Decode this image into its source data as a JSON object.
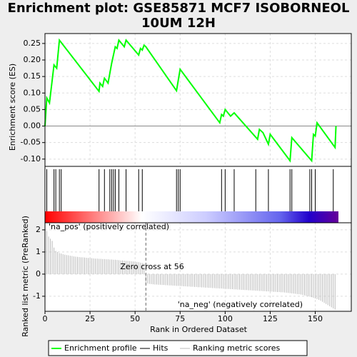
{
  "title": "Enrichment plot: GSE85871 MCF7 ISOBORNEOL 10UM 12H",
  "legend": [
    {
      "name": "Enrichment profile",
      "color": "#00ff00"
    },
    {
      "name": "Hits",
      "color": "#000000"
    },
    {
      "name": "Ranking metric scores",
      "color": "#bbbbbb"
    }
  ],
  "chart_data": [
    {
      "type": "line",
      "y_label": "Enrichment score (ES)",
      "color": "#00ff00",
      "xlim": [
        0,
        170
      ],
      "ylim": [
        -0.122,
        0.28
      ],
      "yticks": [
        0.25,
        {
          "value": 0.2,
          "label": "0.20"
        },
        0.15,
        {
          "value": 0.1,
          "label": "0.10"
        },
        0.05,
        {
          "value": 0,
          "label": "0.00"
        },
        -0.05,
        {
          "value": -0.1,
          "label": "-0.10"
        }
      ],
      "x": [
        0,
        1,
        2.5,
        5,
        6.5,
        8,
        30,
        30.5,
        32,
        33,
        35,
        37,
        39,
        40,
        41,
        44,
        45,
        52,
        53,
        54,
        55,
        56,
        73,
        75,
        97,
        98,
        99,
        100,
        103,
        105,
        118,
        119,
        121,
        124,
        125,
        136,
        137,
        148,
        149,
        150,
        151,
        161,
        161.5
      ],
      "values": [
        0,
        0.085,
        0.07,
        0.185,
        0.175,
        0.26,
        0.105,
        0.13,
        0.12,
        0.145,
        0.13,
        0.19,
        0.24,
        0.235,
        0.26,
        0.24,
        0.26,
        0.215,
        0.235,
        0.23,
        0.245,
        0.24,
        0.107,
        0.172,
        0.01,
        0.035,
        0.03,
        0.05,
        0.03,
        0.04,
        -0.04,
        -0.01,
        -0.02,
        -0.055,
        -0.025,
        -0.105,
        -0.035,
        -0.105,
        -0.025,
        -0.03,
        0.01,
        -0.065,
        0
      ]
    },
    {
      "type": "hits",
      "color": "#000000",
      "xlim": [
        0,
        170
      ],
      "x": [
        1,
        5,
        6,
        8,
        9,
        30,
        33,
        36,
        37,
        38,
        39,
        41,
        45,
        52,
        54,
        73,
        74,
        75,
        98,
        100,
        105,
        117,
        124,
        136,
        137,
        147,
        148,
        150,
        160
      ]
    },
    {
      "type": "bar",
      "y_label": "Ranked list metric (PreRanked)",
      "x_label": "Rank in Ordered Dataset",
      "color": "#bbbbbb",
      "xlim": [
        0,
        170
      ],
      "ylim": [
        -1.68,
        2.32
      ],
      "xticks": [
        0,
        25,
        50,
        75,
        100,
        125,
        150
      ],
      "yticks": [
        2,
        1,
        0,
        -1
      ],
      "zero_cross": 56,
      "annotations": [
        {
          "text": "'na_pos' (positively correlated)",
          "color": "#cc0000"
        },
        {
          "text": "Zero cross at 56",
          "color": "#000000"
        },
        {
          "text": "'na_neg' (negatively correlated)",
          "color": "#0000cc"
        }
      ],
      "values": [
        2.2,
        1.95,
        1.7,
        1.6,
        1.5,
        1.2,
        1.05,
        1.0,
        0.95,
        0.93,
        0.9,
        0.88,
        0.86,
        0.85,
        0.83,
        0.82,
        0.8,
        0.79,
        0.78,
        0.77,
        0.76,
        0.76,
        0.75,
        0.74,
        0.73,
        0.73,
        0.72,
        0.71,
        0.7,
        0.7,
        0.69,
        0.69,
        0.68,
        0.68,
        0.67,
        0.67,
        0.66,
        0.66,
        0.65,
        0.65,
        0.64,
        0.63,
        0.62,
        0.62,
        0.61,
        0.6,
        0.6,
        0.59,
        0.58,
        0.57,
        0.56,
        0.55,
        0.54,
        0.52,
        0.5,
        0.48,
        -0.42,
        -0.43,
        -0.44,
        -0.45,
        -0.46,
        -0.47,
        -0.47,
        -0.48,
        -0.48,
        -0.49,
        -0.49,
        -0.5,
        -0.5,
        -0.51,
        -0.51,
        -0.52,
        -0.52,
        -0.53,
        -0.53,
        -0.54,
        -0.54,
        -0.55,
        -0.55,
        -0.56,
        -0.56,
        -0.57,
        -0.57,
        -0.58,
        -0.58,
        -0.59,
        -0.59,
        -0.6,
        -0.6,
        -0.61,
        -0.61,
        -0.62,
        -0.62,
        -0.63,
        -0.63,
        -0.64,
        -0.64,
        -0.65,
        -0.65,
        -0.66,
        -0.66,
        -0.67,
        -0.67,
        -0.68,
        -0.68,
        -0.69,
        -0.69,
        -0.7,
        -0.7,
        -0.71,
        -0.71,
        -0.72,
        -0.72,
        -0.73,
        -0.73,
        -0.74,
        -0.74,
        -0.75,
        -0.75,
        -0.76,
        -0.76,
        -0.77,
        -0.77,
        -0.78,
        -0.78,
        -0.79,
        -0.79,
        -0.8,
        -0.8,
        -0.81,
        -0.81,
        -0.82,
        -0.82,
        -0.83,
        -0.84,
        -0.85,
        -0.86,
        -0.87,
        -0.88,
        -0.89,
        -0.9,
        -0.91,
        -0.92,
        -0.94,
        -0.96,
        -0.98,
        -1.0,
        -1.02,
        -1.04,
        -1.07,
        -1.1,
        -1.13,
        -1.16,
        -1.2,
        -1.25,
        -1.3,
        -1.35,
        -1.4,
        -1.45,
        -1.5,
        -1.55,
        -1.6
      ]
    }
  ]
}
